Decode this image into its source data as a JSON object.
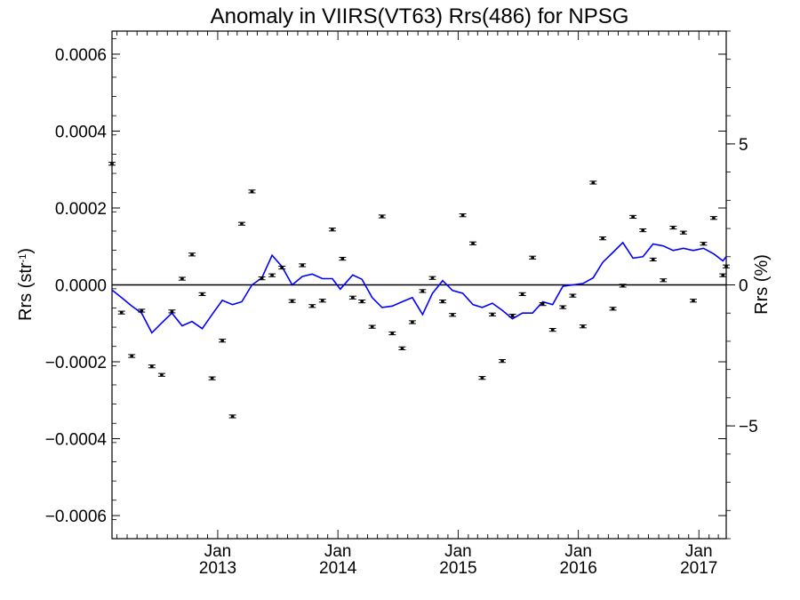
{
  "chart_data": {
    "type": "scatter",
    "title": "Anomaly in VIIRS(VT63) Rrs(486) for NPSG",
    "ylabel": "Rrs (str",
    "ylabel_sup": "-1",
    "ylabel_close": ")",
    "y2label": "Rrs (%)",
    "xlim": [
      "2012-02-15",
      "2017-03-25"
    ],
    "ylim": [
      -0.00066,
      0.00066
    ],
    "y2lim": [
      -9.0,
      9.0
    ],
    "yticks": [
      {
        "value": 0.0006,
        "label": "0.0006"
      },
      {
        "value": 0.0004,
        "label": "0.0004"
      },
      {
        "value": 0.0002,
        "label": "0.0002"
      },
      {
        "value": 0.0,
        "label": "0.0000"
      },
      {
        "value": -0.0002,
        "label": "−0.0002"
      },
      {
        "value": -0.0004,
        "label": "−0.0004"
      },
      {
        "value": -0.0006,
        "label": "−0.0006"
      }
    ],
    "y2ticks": [
      {
        "value": 5,
        "label": "5"
      },
      {
        "value": 0,
        "label": "0"
      },
      {
        "value": -5,
        "label": "−5"
      }
    ],
    "xticks": [
      {
        "date": "2013-01-01",
        "month": "Jan",
        "year": "2013"
      },
      {
        "date": "2014-01-01",
        "month": "Jan",
        "year": "2014"
      },
      {
        "date": "2015-01-01",
        "month": "Jan",
        "year": "2015"
      },
      {
        "date": "2016-01-01",
        "month": "Jan",
        "year": "2016"
      },
      {
        "date": "2017-01-01",
        "month": "Jan",
        "year": "2017"
      }
    ],
    "grid": false,
    "legend": "none",
    "colors": {
      "points": "#000000",
      "line": "#0000ff",
      "zero_line": "#000000"
    },
    "series": [
      {
        "kind": "points-with-errorbars",
        "axis": "left",
        "points": [
          {
            "x": "2012-02-15",
            "y": 0.000315
          },
          {
            "x": "2012-03-15",
            "y": -7.2e-05
          },
          {
            "x": "2012-04-15",
            "y": -0.000185
          },
          {
            "x": "2012-05-15",
            "y": -6.7e-05
          },
          {
            "x": "2012-06-15",
            "y": -0.000212
          },
          {
            "x": "2012-07-15",
            "y": -0.000234
          },
          {
            "x": "2012-08-15",
            "y": -6.9e-05
          },
          {
            "x": "2012-09-15",
            "y": 1.6e-05
          },
          {
            "x": "2012-10-15",
            "y": 7.9e-05
          },
          {
            "x": "2012-11-15",
            "y": -2.4e-05
          },
          {
            "x": "2012-12-15",
            "y": -0.000243
          },
          {
            "x": "2013-01-15",
            "y": -0.000145
          },
          {
            "x": "2013-02-15",
            "y": -0.000342
          },
          {
            "x": "2013-03-15",
            "y": 0.000159
          },
          {
            "x": "2013-04-15",
            "y": 0.000243
          },
          {
            "x": "2013-05-15",
            "y": 1.7e-05
          },
          {
            "x": "2013-06-15",
            "y": 2.5e-05
          },
          {
            "x": "2013-07-15",
            "y": 4.5e-05
          },
          {
            "x": "2013-08-15",
            "y": -4.2e-05
          },
          {
            "x": "2013-09-15",
            "y": 5.1e-05
          },
          {
            "x": "2013-10-15",
            "y": -5.5e-05
          },
          {
            "x": "2013-11-15",
            "y": -4.1e-05
          },
          {
            "x": "2013-12-15",
            "y": 0.000144
          },
          {
            "x": "2014-01-15",
            "y": 6.8e-05
          },
          {
            "x": "2014-02-15",
            "y": -3.3e-05
          },
          {
            "x": "2014-03-15",
            "y": -4.3e-05
          },
          {
            "x": "2014-04-15",
            "y": -0.000109
          },
          {
            "x": "2014-05-15",
            "y": 0.000178
          },
          {
            "x": "2014-06-15",
            "y": -0.000126
          },
          {
            "x": "2014-07-15",
            "y": -0.000165
          },
          {
            "x": "2014-08-15",
            "y": -9.7e-05
          },
          {
            "x": "2014-09-15",
            "y": -1.6e-05
          },
          {
            "x": "2014-10-15",
            "y": 1.8e-05
          },
          {
            "x": "2014-11-15",
            "y": -4.3e-05
          },
          {
            "x": "2014-12-15",
            "y": -7.8e-05
          },
          {
            "x": "2015-01-15",
            "y": 0.000181
          },
          {
            "x": "2015-02-15",
            "y": 0.000108
          },
          {
            "x": "2015-03-15",
            "y": -0.000242
          },
          {
            "x": "2015-04-15",
            "y": -7.7e-05
          },
          {
            "x": "2015-05-15",
            "y": -0.000198
          },
          {
            "x": "2015-06-15",
            "y": -8e-05
          },
          {
            "x": "2015-07-15",
            "y": -2.4e-05
          },
          {
            "x": "2015-08-15",
            "y": 7.1e-05
          },
          {
            "x": "2015-09-15",
            "y": -5e-05
          },
          {
            "x": "2015-10-15",
            "y": -0.000117
          },
          {
            "x": "2015-11-15",
            "y": -5.8e-05
          },
          {
            "x": "2015-12-15",
            "y": -2.8e-05
          },
          {
            "x": "2016-01-15",
            "y": -0.000108
          },
          {
            "x": "2016-02-15",
            "y": 0.000266
          },
          {
            "x": "2016-03-15",
            "y": 0.000121
          },
          {
            "x": "2016-04-15",
            "y": -6.2e-05
          },
          {
            "x": "2016-05-15",
            "y": -2e-06
          },
          {
            "x": "2016-06-15",
            "y": 0.000177
          },
          {
            "x": "2016-07-15",
            "y": 0.000142
          },
          {
            "x": "2016-08-15",
            "y": 6.6e-05
          },
          {
            "x": "2016-09-15",
            "y": 1.2e-05
          },
          {
            "x": "2016-10-15",
            "y": 0.000149
          },
          {
            "x": "2016-11-15",
            "y": 0.000136
          },
          {
            "x": "2016-12-15",
            "y": -4.1e-05
          },
          {
            "x": "2017-01-15",
            "y": 0.000107
          },
          {
            "x": "2017-02-15",
            "y": 0.000174
          },
          {
            "x": "2017-03-15",
            "y": 2.5e-05
          },
          {
            "x": "2017-03-25",
            "y": 4.8e-05
          }
        ]
      },
      {
        "kind": "line",
        "axis": "right",
        "points": [
          {
            "x": "2012-02-15",
            "y": -0.18
          },
          {
            "x": "2012-03-15",
            "y": -0.45
          },
          {
            "x": "2012-04-15",
            "y": -0.75
          },
          {
            "x": "2012-05-15",
            "y": -1.0
          },
          {
            "x": "2012-06-15",
            "y": -1.7
          },
          {
            "x": "2012-07-15",
            "y": -1.35
          },
          {
            "x": "2012-08-15",
            "y": -1.0
          },
          {
            "x": "2012-09-15",
            "y": -1.45
          },
          {
            "x": "2012-10-15",
            "y": -1.3
          },
          {
            "x": "2012-11-15",
            "y": -1.55
          },
          {
            "x": "2012-12-15",
            "y": -1.05
          },
          {
            "x": "2013-01-15",
            "y": -0.55
          },
          {
            "x": "2013-02-15",
            "y": -0.7
          },
          {
            "x": "2013-03-15",
            "y": -0.6
          },
          {
            "x": "2013-04-15",
            "y": 0.0
          },
          {
            "x": "2013-05-15",
            "y": 0.25
          },
          {
            "x": "2013-06-15",
            "y": 1.05
          },
          {
            "x": "2013-07-15",
            "y": 0.65
          },
          {
            "x": "2013-08-15",
            "y": 0.0
          },
          {
            "x": "2013-09-15",
            "y": 0.3
          },
          {
            "x": "2013-10-15",
            "y": 0.38
          },
          {
            "x": "2013-11-15",
            "y": 0.22
          },
          {
            "x": "2013-12-15",
            "y": 0.22
          },
          {
            "x": "2014-01-08",
            "y": -0.15
          },
          {
            "x": "2014-02-15",
            "y": 0.35
          },
          {
            "x": "2014-03-15",
            "y": 0.2
          },
          {
            "x": "2014-04-15",
            "y": -0.45
          },
          {
            "x": "2014-05-15",
            "y": -0.8
          },
          {
            "x": "2014-06-15",
            "y": -0.75
          },
          {
            "x": "2014-07-15",
            "y": -0.6
          },
          {
            "x": "2014-08-15",
            "y": -0.45
          },
          {
            "x": "2014-09-15",
            "y": -1.05
          },
          {
            "x": "2014-10-15",
            "y": -0.3
          },
          {
            "x": "2014-11-15",
            "y": 0.15
          },
          {
            "x": "2014-12-15",
            "y": -0.2
          },
          {
            "x": "2015-01-15",
            "y": -0.3
          },
          {
            "x": "2015-02-15",
            "y": -0.7
          },
          {
            "x": "2015-03-15",
            "y": -0.8
          },
          {
            "x": "2015-04-15",
            "y": -0.65
          },
          {
            "x": "2015-05-15",
            "y": -0.9
          },
          {
            "x": "2015-06-15",
            "y": -1.2
          },
          {
            "x": "2015-07-15",
            "y": -1.0
          },
          {
            "x": "2015-08-15",
            "y": -1.0
          },
          {
            "x": "2015-09-15",
            "y": -0.6
          },
          {
            "x": "2015-10-15",
            "y": -0.7
          },
          {
            "x": "2015-11-15",
            "y": -0.05
          },
          {
            "x": "2015-12-15",
            "y": 0.0
          },
          {
            "x": "2016-01-15",
            "y": 0.05
          },
          {
            "x": "2016-02-15",
            "y": 0.25
          },
          {
            "x": "2016-03-15",
            "y": 0.8
          },
          {
            "x": "2016-04-15",
            "y": 1.15
          },
          {
            "x": "2016-05-15",
            "y": 1.5
          },
          {
            "x": "2016-06-15",
            "y": 0.95
          },
          {
            "x": "2016-07-15",
            "y": 1.0
          },
          {
            "x": "2016-08-15",
            "y": 1.45
          },
          {
            "x": "2016-09-15",
            "y": 1.38
          },
          {
            "x": "2016-10-15",
            "y": 1.22
          },
          {
            "x": "2016-11-15",
            "y": 1.3
          },
          {
            "x": "2016-12-15",
            "y": 1.22
          },
          {
            "x": "2017-01-15",
            "y": 1.3
          },
          {
            "x": "2017-02-15",
            "y": 1.1
          },
          {
            "x": "2017-03-15",
            "y": 0.85
          },
          {
            "x": "2017-03-25",
            "y": 1.0
          }
        ]
      }
    ]
  }
}
